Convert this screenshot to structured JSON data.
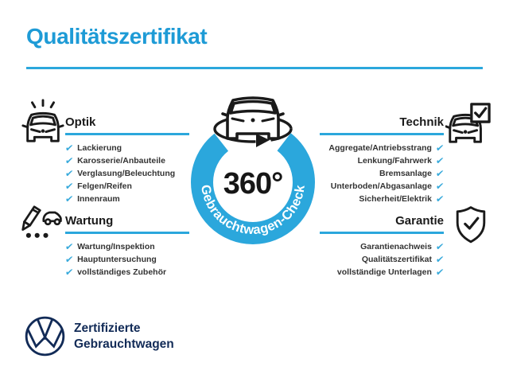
{
  "header": {
    "title": "Qualitätszertifikat"
  },
  "center": {
    "value": "360°",
    "ring_label": "Gebrauchtwagen-Check",
    "icon": "rotating-car-icon"
  },
  "sections": {
    "optik": {
      "title": "Optik",
      "icon": "car-shine-icon",
      "items": [
        "Lackierung",
        "Karosserie/Anbauteile",
        "Verglasung/Beleuchtung",
        "Felgen/Reifen",
        "Innenraum"
      ]
    },
    "technik": {
      "title": "Technik",
      "icon": "car-checkbox-icon",
      "items": [
        "Aggregate/Antriebsstrang",
        "Lenkung/Fahrwerk",
        "Bremsanlage",
        "Unterboden/Abgasanlage",
        "Sicherheit/Elektrik"
      ]
    },
    "wartung": {
      "title": "Wartung",
      "icon": "service-checklist-icon",
      "items": [
        "Wartung/Inspektion",
        "Hauptuntersuchung",
        "vollständiges Zubehör"
      ]
    },
    "garantie": {
      "title": "Garantie",
      "icon": "shield-check-icon",
      "items": [
        "Garantienachweis",
        "Qualitätszertifikat",
        "vollständige Unterlagen"
      ]
    }
  },
  "footer": {
    "logo": "vw-logo",
    "brand_line1": "Zertifizierte",
    "brand_line2": "Gebrauchtwagen"
  },
  "colors": {
    "accent": "#2BA7DC",
    "title-blue": "#1E9BD6",
    "check-blue": "#36A9DB",
    "ink": "#1A1A1A",
    "item-ink": "#333333",
    "navy": "#122B57"
  }
}
